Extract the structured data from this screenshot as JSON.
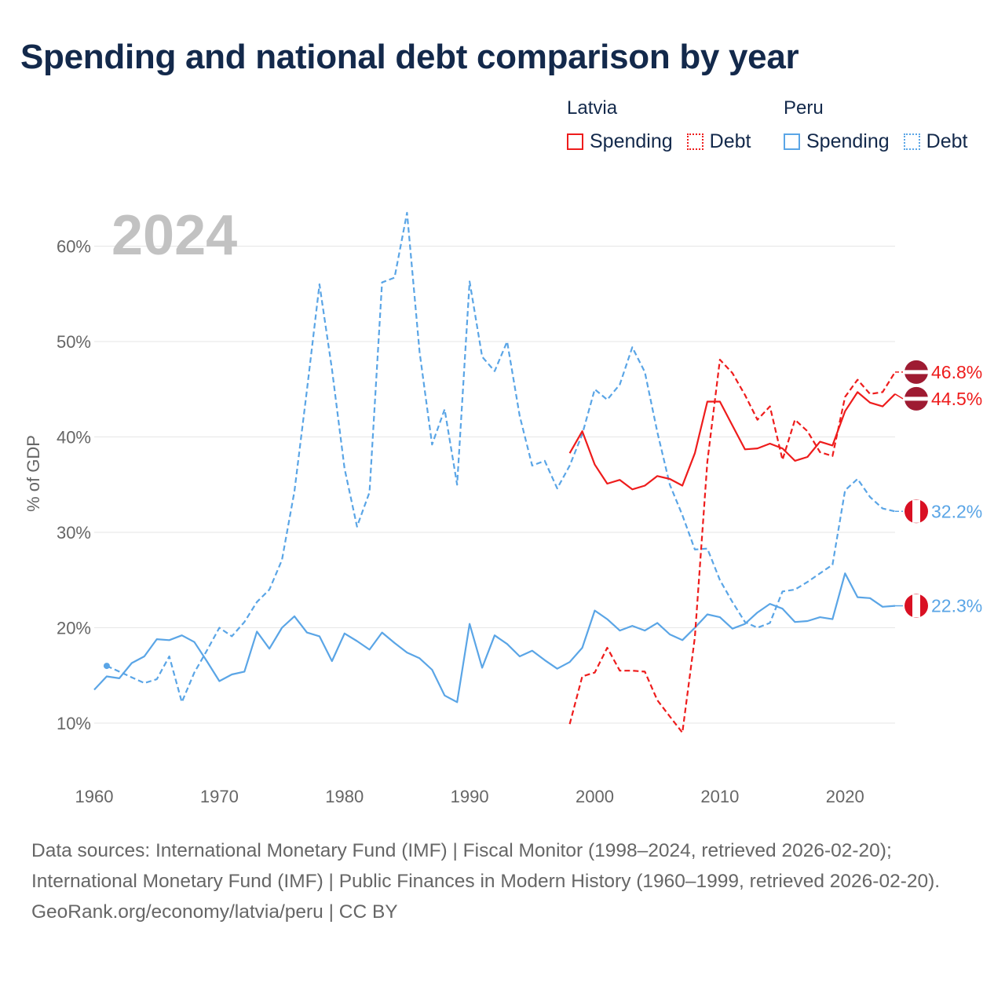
{
  "title": "Spending and national debt comparison by year",
  "legend": {
    "groups": [
      {
        "country": "Latvia",
        "items": [
          {
            "label": "Spending",
            "style": "solid"
          },
          {
            "label": "Debt",
            "style": "dotted"
          }
        ],
        "color": "#ee1c1c"
      },
      {
        "country": "Peru",
        "items": [
          {
            "label": "Spending",
            "style": "solid"
          },
          {
            "label": "Debt",
            "style": "dotted"
          }
        ],
        "color": "#5aa5e6"
      }
    ]
  },
  "footer": {
    "sources": "Data sources: International Monetary Fund (IMF) | Fiscal Monitor (1998–2024, retrieved 2026-02-20); International Monetary Fund (IMF) | Public Finances in Modern History (1960–1999, retrieved 2026-02-20).",
    "credit": "GeoRank.org/economy/latvia/peru | CC BY"
  },
  "chart_data": {
    "type": "line",
    "year_label": "2024",
    "ylabel": "% of GDP",
    "xlim": [
      1960,
      2024
    ],
    "ylim": [
      5,
      65
    ],
    "x_ticks": [
      1960,
      1970,
      1980,
      1990,
      2000,
      2010,
      2020
    ],
    "y_ticks": [
      10,
      20,
      30,
      40,
      50,
      60
    ],
    "y_tick_labels": [
      "10%",
      "20%",
      "30%",
      "40%",
      "50%",
      "60%"
    ],
    "colors": {
      "latvia": "#ee1c1c",
      "peru": "#5aa5e6",
      "latvia_flag": "#9e1b32",
      "peru_flag": "#d91023"
    },
    "series": [
      {
        "name": "Peru Debt",
        "country": "Peru",
        "measure": "Debt",
        "dash": "dashed",
        "color": "#5aa5e6",
        "end_label": "32.2%",
        "x": [
          1961,
          1962,
          1963,
          1964,
          1965,
          1966,
          1967,
          1968,
          1969,
          1970,
          1971,
          1972,
          1973,
          1974,
          1975,
          1976,
          1977,
          1978,
          1979,
          1980,
          1981,
          1982,
          1983,
          1984,
          1985,
          1986,
          1987,
          1988,
          1989,
          1990,
          1991,
          1992,
          1993,
          1994,
          1995,
          1996,
          1997,
          1998,
          1999,
          2000,
          2001,
          2002,
          2003,
          2004,
          2005,
          2006,
          2007,
          2008,
          2009,
          2010,
          2011,
          2012,
          2013,
          2014,
          2015,
          2016,
          2017,
          2018,
          2019,
          2020,
          2021,
          2022,
          2023,
          2024
        ],
        "y": [
          16.0,
          15.4,
          14.8,
          14.2,
          14.6,
          17.0,
          12.2,
          15.3,
          17.6,
          20.0,
          19.1,
          20.6,
          22.7,
          24.0,
          27.1,
          34.3,
          44.9,
          56.0,
          47.1,
          36.7,
          30.6,
          34.2,
          56.2,
          56.7,
          63.5,
          48.9,
          39.2,
          42.9,
          35.0,
          56.3,
          48.4,
          46.9,
          50.0,
          42.2,
          37.0,
          37.5,
          34.6,
          37.0,
          40.3,
          45.0,
          43.9,
          45.5,
          49.4,
          46.8,
          40.5,
          35.0,
          31.8,
          28.2,
          28.3,
          25.0,
          22.7,
          20.6,
          20.0,
          20.5,
          23.8,
          24.0,
          24.8,
          25.7,
          26.6,
          34.4,
          35.6,
          33.7,
          32.5,
          32.2
        ]
      },
      {
        "name": "Peru Spending",
        "country": "Peru",
        "measure": "Spending",
        "dash": "solid",
        "color": "#5aa5e6",
        "end_label": "22.3%",
        "x": [
          1960,
          1961,
          1962,
          1963,
          1964,
          1965,
          1966,
          1967,
          1968,
          1969,
          1970,
          1971,
          1972,
          1973,
          1974,
          1975,
          1976,
          1977,
          1978,
          1979,
          1980,
          1981,
          1982,
          1983,
          1984,
          1985,
          1986,
          1987,
          1988,
          1989,
          1990,
          1991,
          1992,
          1993,
          1994,
          1995,
          1996,
          1997,
          1998,
          1999,
          2000,
          2001,
          2002,
          2003,
          2004,
          2005,
          2006,
          2007,
          2008,
          2009,
          2010,
          2011,
          2012,
          2013,
          2014,
          2015,
          2016,
          2017,
          2018,
          2019,
          2020,
          2021,
          2022,
          2023,
          2024
        ],
        "y": [
          13.5,
          14.9,
          14.7,
          16.3,
          17.0,
          18.8,
          18.7,
          19.2,
          18.5,
          16.5,
          14.4,
          15.1,
          15.4,
          19.6,
          17.8,
          20.0,
          21.2,
          19.5,
          19.1,
          16.5,
          19.4,
          18.6,
          17.7,
          19.5,
          18.4,
          17.4,
          16.8,
          15.6,
          12.9,
          12.2,
          20.4,
          15.8,
          19.2,
          18.3,
          17.0,
          17.6,
          16.6,
          15.7,
          16.4,
          17.9,
          21.8,
          20.9,
          19.7,
          20.2,
          19.7,
          20.5,
          19.3,
          18.7,
          20.0,
          21.4,
          21.1,
          19.9,
          20.4,
          21.6,
          22.5,
          22.0,
          20.6,
          20.7,
          21.1,
          20.9,
          25.7,
          23.2,
          23.1,
          22.2,
          22.3
        ]
      },
      {
        "name": "Latvia Debt",
        "country": "Latvia",
        "measure": "Debt",
        "dash": "dashed",
        "color": "#ee1c1c",
        "end_label": "46.8%",
        "x": [
          1998,
          1999,
          2000,
          2001,
          2002,
          2003,
          2004,
          2005,
          2006,
          2007,
          2008,
          2009,
          2010,
          2011,
          2012,
          2013,
          2014,
          2015,
          2016,
          2017,
          2018,
          2019,
          2020,
          2021,
          2022,
          2023,
          2024
        ],
        "y": [
          9.9,
          14.9,
          15.3,
          17.9,
          15.5,
          15.5,
          15.4,
          12.4,
          10.7,
          9.0,
          19.0,
          37.4,
          48.1,
          46.7,
          44.4,
          41.8,
          43.2,
          37.6,
          41.8,
          40.6,
          38.4,
          38.0,
          44.2,
          46.0,
          44.5,
          44.7,
          46.8
        ]
      },
      {
        "name": "Latvia Spending",
        "country": "Latvia",
        "measure": "Spending",
        "dash": "solid",
        "color": "#ee1c1c",
        "end_label": "44.5%",
        "x": [
          1998,
          1999,
          2000,
          2001,
          2002,
          2003,
          2004,
          2005,
          2006,
          2007,
          2008,
          2009,
          2010,
          2011,
          2012,
          2013,
          2014,
          2015,
          2016,
          2017,
          2018,
          2019,
          2020,
          2021,
          2022,
          2023,
          2024
        ],
        "y": [
          38.3,
          40.6,
          37.1,
          35.1,
          35.5,
          34.5,
          34.9,
          35.9,
          35.6,
          34.9,
          38.3,
          43.7,
          43.7,
          41.2,
          38.7,
          38.8,
          39.3,
          38.8,
          37.5,
          37.9,
          39.5,
          39.1,
          42.7,
          44.7,
          43.6,
          43.2,
          44.5
        ]
      }
    ]
  }
}
